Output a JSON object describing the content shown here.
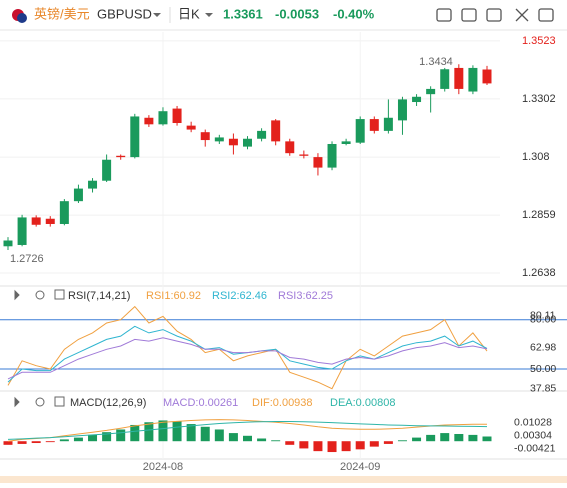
{
  "header": {
    "pair_cn": "英镑/美元",
    "pair": "GBPUSD",
    "period": "日K",
    "change": "-0.0053",
    "change_pct": "-0.40%"
  },
  "chart_data": [
    {
      "type": "candlestick",
      "up_color": "#1a9a5c",
      "down_color": "#e3211c",
      "categories": [
        null,
        null,
        null,
        null,
        null,
        null,
        null,
        null,
        null,
        null,
        null,
        "2024-08",
        null,
        null,
        null,
        null,
        null,
        null,
        null,
        null,
        null,
        null,
        null,
        null,
        null,
        "2024-09",
        null,
        null,
        null,
        null,
        null,
        null,
        null,
        null,
        null
      ],
      "open": [
        1.274,
        1.2745,
        1.285,
        1.2845,
        1.2825,
        1.2912,
        1.296,
        1.299,
        1.3085,
        1.308,
        1.323,
        1.3205,
        1.3265,
        1.32,
        1.3175,
        1.314,
        1.315,
        1.312,
        1.315,
        1.322,
        1.314,
        1.309,
        1.308,
        1.304,
        1.313,
        1.3135,
        1.3225,
        1.318,
        1.322,
        1.329,
        1.332,
        1.334,
        1.342,
        1.333,
        1.3414
      ],
      "high": [
        1.2775,
        1.286,
        1.2858,
        1.2855,
        1.292,
        1.2975,
        1.3,
        1.309,
        1.309,
        1.3245,
        1.324,
        1.327,
        1.3275,
        1.3215,
        1.3185,
        1.3165,
        1.317,
        1.316,
        1.319,
        1.3225,
        1.315,
        1.3105,
        1.3095,
        1.314,
        1.315,
        1.3235,
        1.3235,
        1.33,
        1.331,
        1.332,
        1.335,
        1.342,
        1.3434,
        1.343,
        1.3428
      ],
      "low": [
        1.2726,
        1.274,
        1.2815,
        1.2815,
        1.282,
        1.2905,
        1.2945,
        1.2985,
        1.307,
        1.3075,
        1.3195,
        1.32,
        1.32,
        1.3175,
        1.312,
        1.313,
        1.309,
        1.311,
        1.314,
        1.3125,
        1.3085,
        1.3075,
        1.301,
        1.303,
        1.3125,
        1.313,
        1.317,
        1.317,
        1.3165,
        1.3275,
        1.325,
        1.333,
        1.332,
        1.332,
        1.3355
      ],
      "close": [
        1.2762,
        1.285,
        1.2822,
        1.2825,
        1.2912,
        1.296,
        1.299,
        1.307,
        1.308,
        1.3235,
        1.3205,
        1.3255,
        1.321,
        1.3185,
        1.3145,
        1.3155,
        1.3125,
        1.315,
        1.318,
        1.314,
        1.3095,
        1.3085,
        1.304,
        1.313,
        1.314,
        1.3225,
        1.318,
        1.323,
        1.33,
        1.331,
        1.334,
        1.3415,
        1.334,
        1.342,
        1.3361
      ],
      "ylim": [
        1.26,
        1.3557
      ],
      "yticks": [
        1.3523,
        1.3302,
        1.308,
        1.2859,
        1.2638
      ]
    },
    {
      "type": "line",
      "title": "RSI(7,14,21)",
      "series": [
        {
          "name": "RSI1:60.92",
          "color": "#f0a040",
          "values": [
            40,
            55,
            52,
            50,
            62,
            68,
            72,
            78,
            80,
            88,
            78,
            82,
            73,
            68,
            60,
            62,
            55,
            58,
            60,
            62,
            48,
            45,
            42,
            38,
            55,
            62,
            58,
            64,
            70,
            72,
            74,
            80,
            64,
            72,
            60.92
          ]
        },
        {
          "name": "RSI2:62.46",
          "color": "#2fb5d0",
          "values": [
            42,
            50,
            49,
            49,
            56,
            60,
            64,
            68,
            70,
            76,
            72,
            74,
            70,
            67,
            62,
            63,
            59,
            60,
            61,
            62,
            55,
            53,
            51,
            50,
            55,
            58,
            56,
            60,
            64,
            66,
            67,
            70,
            64,
            67,
            62.46
          ]
        },
        {
          "name": "RSI3:62.25",
          "color": "#a07ad8",
          "values": [
            44,
            48,
            48,
            48,
            52,
            56,
            59,
            62,
            64,
            68,
            67,
            69,
            67,
            65,
            62,
            62,
            60,
            60,
            61,
            61,
            57,
            56,
            54,
            53,
            56,
            57,
            56,
            58,
            61,
            63,
            64,
            66,
            63,
            64,
            62.25
          ]
        }
      ],
      "ylim": [
        36,
        92
      ],
      "yticks": [
        80.11,
        {
          "value": 80,
          "label": "80.00"
        },
        62.98,
        {
          "value": 50,
          "label": "50.00"
        },
        37.85
      ],
      "level_color": "#3a7bd5"
    },
    {
      "type": "bar",
      "title": "MACD(12,26,9)",
      "series": [
        {
          "name": "MACD:0.00261",
          "color": "#a07ad8",
          "up_color": "#1a9a5c",
          "down_color": "#e3211c",
          "kind": "bar",
          "values": [
            -0.002,
            -0.0015,
            -0.001,
            -0.0005,
            0.001,
            0.002,
            0.0035,
            0.005,
            0.0065,
            0.009,
            0.0105,
            0.0115,
            0.011,
            0.0095,
            0.008,
            0.0065,
            0.0045,
            0.003,
            0.0015,
            0.0005,
            -0.002,
            -0.004,
            -0.0055,
            -0.006,
            -0.0055,
            -0.0045,
            -0.003,
            -0.0015,
            0.0005,
            0.002,
            0.0035,
            0.0045,
            0.004,
            0.0035,
            0.00261
          ]
        },
        {
          "name": "DIF:0.00938",
          "color": "#f0a040",
          "kind": "line",
          "values": [
            0.0,
            0.001,
            0.0015,
            0.002,
            0.003,
            0.004,
            0.005,
            0.006,
            0.0072,
            0.0085,
            0.0095,
            0.0105,
            0.011,
            0.0115,
            0.0118,
            0.012,
            0.0118,
            0.0115,
            0.011,
            0.0105,
            0.0098,
            0.009,
            0.008,
            0.0072,
            0.0068,
            0.0066,
            0.0066,
            0.0068,
            0.0072,
            0.0078,
            0.0084,
            0.009,
            0.0092,
            0.0094,
            0.00938
          ]
        },
        {
          "name": "DEA:0.00808",
          "color": "#2fb5a8",
          "kind": "line",
          "values": [
            0.001,
            0.0013,
            0.0017,
            0.002,
            0.0025,
            0.003,
            0.0035,
            0.004,
            0.0047,
            0.0055,
            0.0062,
            0.007,
            0.0078,
            0.0085,
            0.0092,
            0.0098,
            0.0102,
            0.0106,
            0.0108,
            0.0109,
            0.0109,
            0.0108,
            0.0106,
            0.0103,
            0.0099,
            0.0096,
            0.0093,
            0.009,
            0.0088,
            0.0086,
            0.0085,
            0.0084,
            0.0083,
            0.0082,
            0.00808
          ]
        }
      ],
      "ylim": [
        -0.0093,
        0.0256
      ],
      "yticks": [
        0.01028,
        0.00304,
        -0.00421
      ]
    }
  ]
}
